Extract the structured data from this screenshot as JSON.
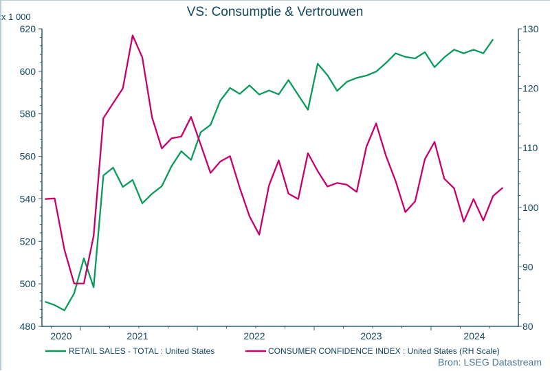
{
  "chart_data": {
    "type": "line",
    "title": "VS: Consumptie & Vertrouwen",
    "left_axis_unit": "x 1 000",
    "left_axis": {
      "range": [
        480,
        620
      ],
      "ticks": [
        "480",
        "500",
        "520",
        "540",
        "560",
        "580",
        "600",
        "620"
      ]
    },
    "right_axis": {
      "range": [
        80,
        130
      ],
      "ticks": [
        "80",
        "90",
        "100",
        "110",
        "120",
        "130"
      ]
    },
    "x_ticks": [
      "2020",
      "2021",
      "2022",
      "2023",
      "2024"
    ],
    "grid": false,
    "legend_position": "bottom",
    "source": "Bron: LSEG Datastream",
    "colors": {
      "retail": "#0a9a5c",
      "confidence": "#c8006a",
      "text": "#13475f"
    },
    "series": [
      {
        "name": "RETAIL SALES - TOTAL : United States",
        "axis": "left",
        "start": "2020-03",
        "frequency": "monthly",
        "values": [
          491.6,
          490,
          487.5,
          495.5,
          512,
          498.4,
          551,
          554.7,
          545.6,
          548.9,
          537.9,
          542.4,
          546,
          555.4,
          562.4,
          558.3,
          571.4,
          574.8,
          586.2,
          592.2,
          589.4,
          593.4,
          589.1,
          591,
          589.2,
          595.9,
          588.9,
          581.9,
          603.6,
          598.2,
          590.8,
          595.1,
          596.9,
          598,
          599.9,
          603.9,
          608.5,
          606.8,
          606.1,
          609,
          602,
          606.6,
          610.2,
          608.5,
          610.2,
          608.5,
          615.1
        ]
      },
      {
        "name": "CONSUMER CONFIDENCE INDEX : United States (RH Scale)",
        "axis": "right",
        "start": "2020-03",
        "frequency": "monthly",
        "values": [
          101.4,
          101.5,
          92.9,
          87.2,
          87.2,
          95.2,
          115,
          117.5,
          120,
          128.9,
          125.2,
          115.1,
          109.9,
          111.6,
          111.9,
          115.2,
          110.5,
          105.8,
          107.7,
          108.6,
          103.3,
          98.5,
          95.4,
          103.7,
          107.9,
          102.3,
          101.4,
          109.1,
          106.1,
          103.5,
          104.1,
          103.8,
          102.6,
          110.2,
          114.1,
          108.7,
          104.4,
          99.2,
          101,
          108.1,
          111,
          104.8,
          103.2,
          97.6,
          101.4,
          97.8,
          101.9,
          103.3
        ]
      }
    ]
  }
}
